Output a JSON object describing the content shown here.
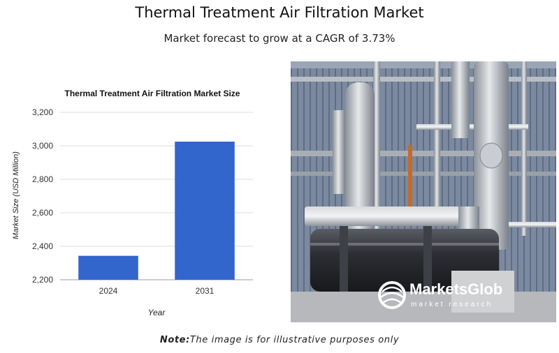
{
  "header": {
    "title": "Thermal Treatment Air Filtration Market",
    "subtitle": "Market forecast to grow at a CAGR of 3.73%"
  },
  "chart_data": {
    "type": "bar",
    "title": "Thermal Treatment Air Filtration Market Size",
    "xlabel": "Year",
    "ylabel": "Market Size (USD Million)",
    "categories": [
      "2024",
      "2031"
    ],
    "values": [
      2343,
      3025
    ],
    "ylim": [
      2200,
      3200
    ],
    "yticks": [
      2200,
      2400,
      2600,
      2800,
      3000,
      3200
    ],
    "ytick_labels": [
      "2,200",
      "2,400",
      "2,600",
      "2,800",
      "3,000",
      "3,200"
    ],
    "bar_color": "#3366cc",
    "grid": true
  },
  "photo": {
    "logo_text": "MarketsGlob",
    "logo_sub": "market research"
  },
  "note": {
    "label": "Note:",
    "text": "The image is for illustrative purposes only"
  }
}
